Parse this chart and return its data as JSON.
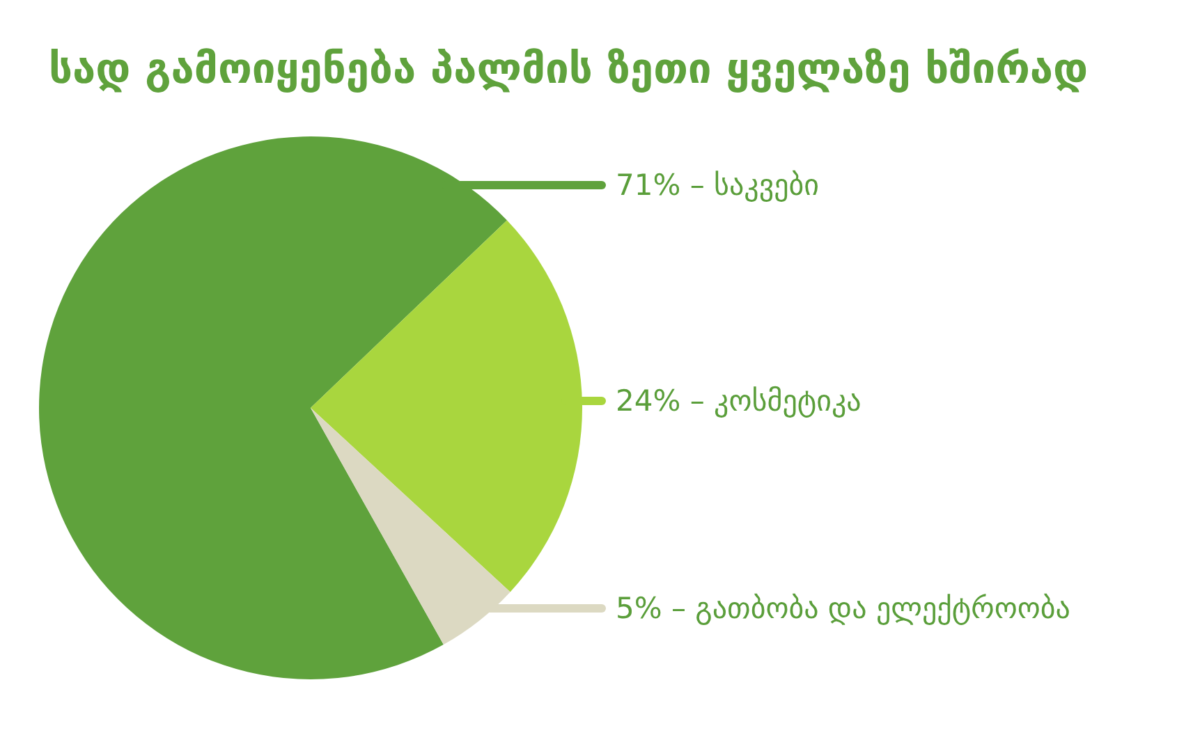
{
  "chart_data": {
    "type": "pie",
    "title": "სად გამოიყენება პალმის ზეთი ყველაზე ხშირად",
    "categories": [
      "საკვები",
      "კოსმეტიკა",
      "გათბობა და ელექტროობა"
    ],
    "values": [
      71,
      24,
      5
    ],
    "value_labels": [
      "71%",
      "24%",
      "5%"
    ],
    "colors": [
      "#5fa23c",
      "#a9d63e",
      "#dcd9c2"
    ]
  }
}
